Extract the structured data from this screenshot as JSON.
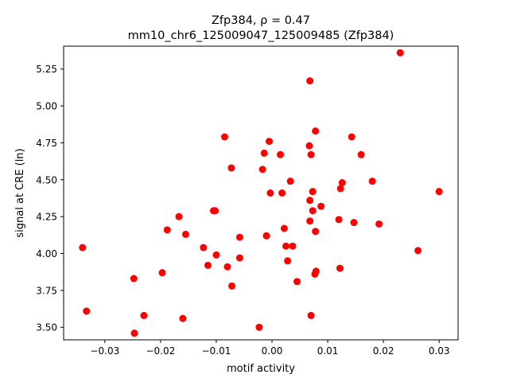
{
  "chart_data": {
    "type": "scatter",
    "title_line1": "Zfp384, ρ = 0.47",
    "title_line2": "mm10_chr6_125009047_125009485 (Zfp384)",
    "xlabel": "motif activity",
    "ylabel": "signal at CRE (ln)",
    "xlim": [
      -0.0374,
      0.0334
    ],
    "ylim": [
      3.415,
      5.405
    ],
    "xticks": [
      -0.03,
      -0.02,
      -0.01,
      0.0,
      0.01,
      0.02,
      0.03
    ],
    "xtick_labels": [
      "−0.03",
      "−0.02",
      "−0.01",
      "0.00",
      "0.01",
      "0.02",
      "0.03"
    ],
    "yticks": [
      3.5,
      3.75,
      4.0,
      4.25,
      4.5,
      4.75,
      5.0,
      5.25
    ],
    "ytick_labels": [
      "3.50",
      "3.75",
      "4.00",
      "4.25",
      "4.50",
      "4.75",
      "5.00",
      "5.25"
    ],
    "marker_color": "#ff0000",
    "points": [
      {
        "x": -0.034,
        "y": 4.04
      },
      {
        "x": -0.0333,
        "y": 3.61
      },
      {
        "x": -0.0248,
        "y": 3.83
      },
      {
        "x": -0.0247,
        "y": 3.46
      },
      {
        "x": -0.023,
        "y": 3.58
      },
      {
        "x": -0.0197,
        "y": 3.87
      },
      {
        "x": -0.0188,
        "y": 4.16
      },
      {
        "x": -0.0167,
        "y": 4.25
      },
      {
        "x": -0.016,
        "y": 3.56
      },
      {
        "x": -0.0155,
        "y": 4.13
      },
      {
        "x": -0.0123,
        "y": 4.04
      },
      {
        "x": -0.0115,
        "y": 3.92
      },
      {
        "x": -0.0105,
        "y": 4.29
      },
      {
        "x": -0.0102,
        "y": 4.29
      },
      {
        "x": -0.01,
        "y": 3.99
      },
      {
        "x": -0.0085,
        "y": 4.79
      },
      {
        "x": -0.008,
        "y": 3.91
      },
      {
        "x": -0.0073,
        "y": 4.58
      },
      {
        "x": -0.0072,
        "y": 3.78
      },
      {
        "x": -0.0058,
        "y": 4.11
      },
      {
        "x": -0.0058,
        "y": 3.97
      },
      {
        "x": -0.0023,
        "y": 3.5
      },
      {
        "x": -0.0017,
        "y": 4.57
      },
      {
        "x": -0.0014,
        "y": 4.68
      },
      {
        "x": -0.001,
        "y": 4.12
      },
      {
        "x": -0.0005,
        "y": 4.76
      },
      {
        "x": -0.0003,
        "y": 4.41
      },
      {
        "x": 0.0015,
        "y": 4.67
      },
      {
        "x": 0.0018,
        "y": 4.41
      },
      {
        "x": 0.0022,
        "y": 4.17
      },
      {
        "x": 0.0025,
        "y": 4.05
      },
      {
        "x": 0.0028,
        "y": 3.95
      },
      {
        "x": 0.0033,
        "y": 4.49
      },
      {
        "x": 0.0037,
        "y": 4.05
      },
      {
        "x": 0.0045,
        "y": 3.81
      },
      {
        "x": 0.0067,
        "y": 4.73
      },
      {
        "x": 0.0068,
        "y": 4.36
      },
      {
        "x": 0.0068,
        "y": 4.22
      },
      {
        "x": 0.0068,
        "y": 5.17
      },
      {
        "x": 0.007,
        "y": 4.67
      },
      {
        "x": 0.007,
        "y": 3.58
      },
      {
        "x": 0.0073,
        "y": 4.29
      },
      {
        "x": 0.0073,
        "y": 4.42
      },
      {
        "x": 0.0077,
        "y": 3.86
      },
      {
        "x": 0.0078,
        "y": 4.15
      },
      {
        "x": 0.0078,
        "y": 4.83
      },
      {
        "x": 0.0079,
        "y": 3.88
      },
      {
        "x": 0.0088,
        "y": 4.32
      },
      {
        "x": 0.012,
        "y": 4.23
      },
      {
        "x": 0.0122,
        "y": 3.9
      },
      {
        "x": 0.0123,
        "y": 4.44
      },
      {
        "x": 0.0126,
        "y": 4.48
      },
      {
        "x": 0.0143,
        "y": 4.79
      },
      {
        "x": 0.0147,
        "y": 4.21
      },
      {
        "x": 0.016,
        "y": 4.67
      },
      {
        "x": 0.018,
        "y": 4.49
      },
      {
        "x": 0.0192,
        "y": 4.2
      },
      {
        "x": 0.023,
        "y": 5.36
      },
      {
        "x": 0.0262,
        "y": 4.02
      },
      {
        "x": 0.03,
        "y": 4.42
      }
    ]
  }
}
